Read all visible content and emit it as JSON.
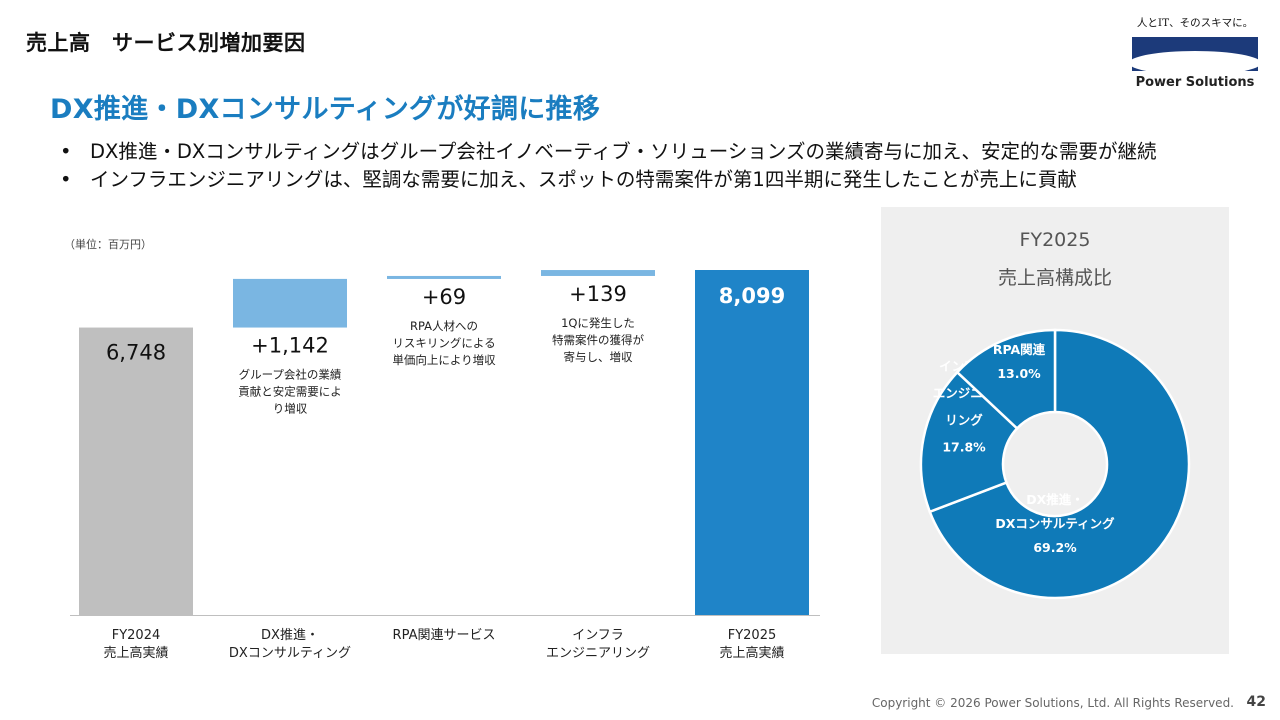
{
  "header": {
    "section_title": "売上高　サービス別増加要因",
    "headline": "DX推進・DXコンサルティングが好調に推移"
  },
  "logo": {
    "tagline": "人とIT、そのスキマに。",
    "company": "Power Solutions",
    "colors": {
      "navy": "#1c3a7a",
      "white": "#ffffff"
    }
  },
  "bullets": [
    "DX推進・DXコンサルティングはグループ会社イノベーティブ・ソリューションズの業績寄与に加え、安定的な需要が継続",
    "インフラエンジニアリングは、堅調な需要に加え、スポットの特需案件が第1四半期に発生したことが売上に貢献"
  ],
  "bullet_marker": "•",
  "unit_note": "（単位：百万円）",
  "chart_data": [
    {
      "type": "bar",
      "variant": "waterfall",
      "categories": [
        [
          "FY2024",
          "売上高実績"
        ],
        [
          "DX推進・",
          "DXコンサルティング"
        ],
        [
          "RPA関連サービス"
        ],
        [
          "インフラ",
          "エンジニアリング"
        ],
        [
          "FY2025",
          "売上高実績"
        ]
      ],
      "bars": [
        {
          "kind": "total",
          "value": 6748,
          "label": "6,748",
          "color": "#bfbfbf"
        },
        {
          "kind": "increase",
          "value": 1142,
          "label": "+1,142",
          "color": "#7ab6e2",
          "note": [
            "グループ会社の業績",
            "貢献と安定需要によ",
            "り増収"
          ]
        },
        {
          "kind": "increase",
          "value": 69,
          "label": "+69",
          "color": "#7ab6e2",
          "note": [
            "RPA人材への",
            "リスキリングによる",
            "単価向上により増収"
          ]
        },
        {
          "kind": "increase",
          "value": 139,
          "label": "+139",
          "color": "#7ab6e2",
          "note": [
            "1Qに発生した",
            "特需案件の獲得が",
            "寄与し、増収"
          ]
        },
        {
          "kind": "total",
          "value": 8099,
          "label": "8,099",
          "color": "#1f84c8"
        }
      ],
      "ylim": [
        0,
        8099
      ],
      "grid": false,
      "legend": "none"
    },
    {
      "type": "pie",
      "variant": "donut",
      "title": [
        "FY2025",
        "売上高構成比"
      ],
      "slices": [
        {
          "name": [
            "DX推進・",
            "DXコンサルティング"
          ],
          "value": 69.2,
          "label": "69.2%",
          "color": "#0f7ab8"
        },
        {
          "name": [
            "インフラ",
            "エンジニア",
            "リング"
          ],
          "value": 17.8,
          "label": "17.8%",
          "color": "#0f7ab8"
        },
        {
          "name": [
            "RPA関連"
          ],
          "value": 13.0,
          "label": "13.0%",
          "color": "#0f7ab8"
        }
      ],
      "start": "12 o'clock",
      "direction": "clockwise",
      "panel_color": "#efefef"
    }
  ],
  "footer": {
    "copyright": "Copyright © 2026 Power Solutions, Ltd. All Rights Reserved.",
    "page_number": "42"
  }
}
